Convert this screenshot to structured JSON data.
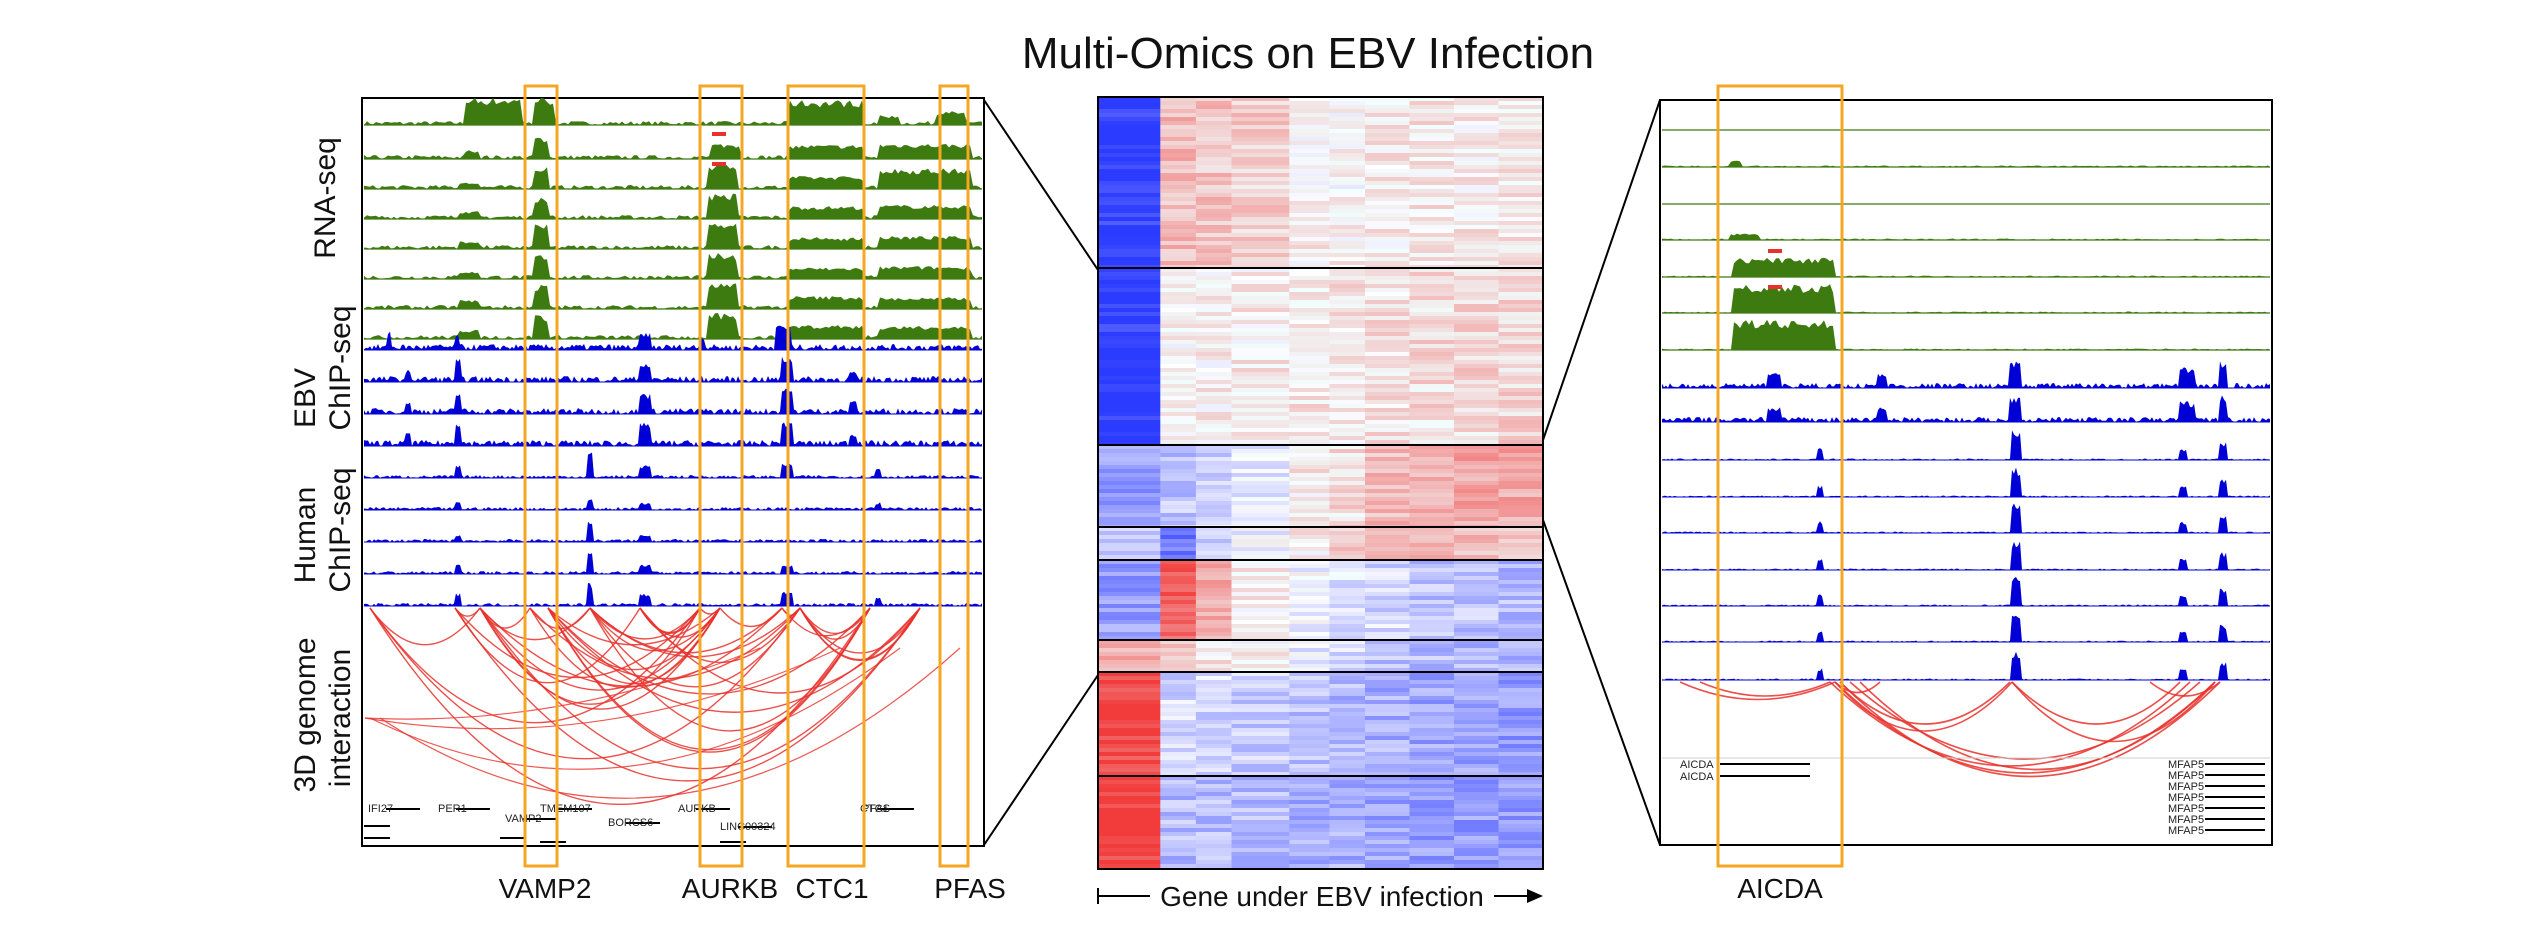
{
  "title": "Multi-Omics on EBV Infection",
  "left_panel": {
    "row_labels": {
      "rnaseq": "RNA-seq",
      "ebv_line1": "EBV",
      "ebv_line2": "ChIP-seq",
      "human_line1": "Human",
      "human_line2": "ChIP-seq",
      "interaction_line1": "3D genome",
      "interaction_line2": "interaction"
    },
    "gene_labels": [
      "VAMP2",
      "AURKB",
      "CTC1",
      "PFAS"
    ],
    "annotation_text": [
      "IFI27",
      "PER1",
      "VAMP2",
      "TMEM107",
      "BORCS6",
      "AURKB",
      "LINC00324",
      "CTC1",
      "PFAS"
    ],
    "track_counts": {
      "rnaseq": 8,
      "ebv_chip": 4,
      "human_chip": 5
    }
  },
  "heatmap": {
    "axis_label": "Gene under EBV infection",
    "num_clusters": 8
  },
  "right_panel": {
    "gene_labels": [
      "AICDA"
    ],
    "annotation_text": [
      "AICDA",
      "AICDA",
      "MFAP5",
      "MFAP5",
      "MFAP5",
      "MFAP5",
      "MFAP5",
      "MFAP5",
      "MFAP5"
    ],
    "track_counts": {
      "rnaseq": 7,
      "chip_top": 2,
      "chip_bottom": 7
    }
  },
  "colors": {
    "rnaseq": "#3d7a10",
    "chip": "#0000d6",
    "interaction": "#e8312b",
    "highlight": "#f5a623",
    "heat_blue": "#2b3bff",
    "heat_red": "#f23b3b"
  }
}
